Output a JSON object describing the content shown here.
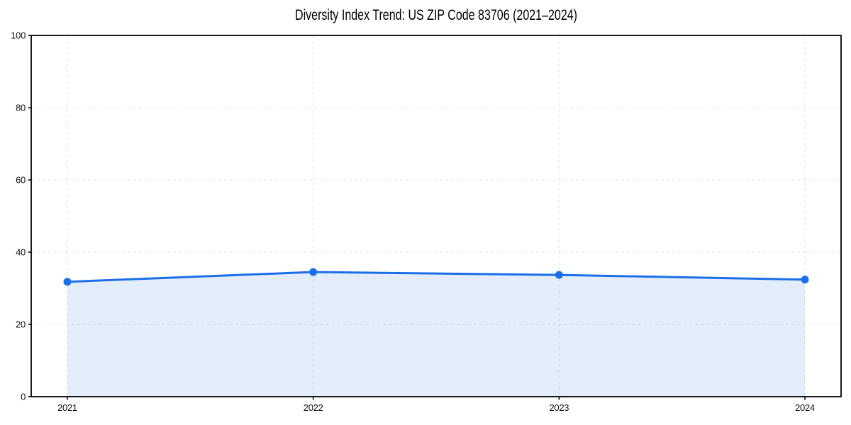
{
  "title": "Diversity Index Trend: US ZIP Code 83706 (2021–2024)",
  "colors": {
    "line": "#1a6fe8",
    "marker": "#1a6fe8",
    "fill": "rgba(26, 111, 232, 0.12)",
    "grid": "#e3e3e3",
    "axis": "#000000",
    "text": "#111111",
    "background": "#ffffff"
  },
  "chart_data": {
    "type": "area",
    "categories": [
      "2021",
      "2022",
      "2023",
      "2024"
    ],
    "values": [
      31.8,
      34.5,
      33.7,
      32.4
    ],
    "title": "Diversity Index Trend: US ZIP Code 83706 (2021–2024)",
    "xlabel": "",
    "ylabel": "",
    "ylim": [
      0,
      100
    ],
    "yticks": [
      0,
      20,
      40,
      60,
      80,
      100
    ],
    "grid": true,
    "grid_style": "dashed",
    "legend": "none",
    "marker": "circle"
  }
}
